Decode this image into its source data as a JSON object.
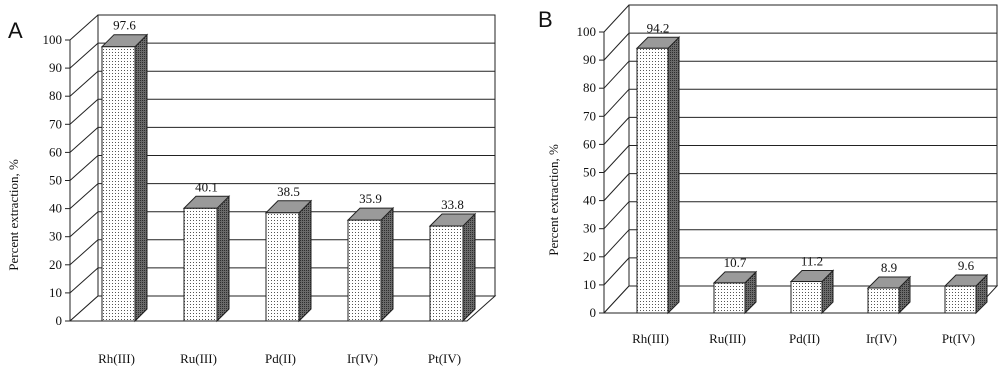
{
  "chart_data": [
    {
      "panel": "A",
      "type": "bar",
      "categories": [
        "Rh(III)",
        "Ru(III)",
        "Pd(II)",
        "Ir(IV)",
        "Pt(IV)"
      ],
      "values": [
        97.6,
        40.1,
        38.5,
        35.9,
        33.8
      ],
      "value_labels": [
        "97.6",
        "40.1",
        "38.5",
        "35.9",
        "33.8"
      ],
      "ylabel": "Percent extraction, %",
      "ylim": [
        0,
        100
      ],
      "yticks": [
        "0",
        "10",
        "20",
        "30",
        "40",
        "50",
        "60",
        "70",
        "80",
        "90",
        "100"
      ],
      "grid": true,
      "style": "3d",
      "colors": {
        "front": "#ffffff",
        "dots": "#555555",
        "top": "#9a9a9a",
        "side": "#555555",
        "line": "#222222"
      }
    },
    {
      "panel": "B",
      "type": "bar",
      "categories": [
        "Rh(III)",
        "Ru(III)",
        "Pd(II)",
        "Ir(IV)",
        "Pt(IV)"
      ],
      "values": [
        94.2,
        10.7,
        11.2,
        8.9,
        9.6
      ],
      "value_labels": [
        "94.2",
        "10.7",
        "11.2",
        "8.9",
        "9.6"
      ],
      "ylabel": "Percent extraction, %",
      "ylim": [
        0,
        100
      ],
      "yticks": [
        "0",
        "10",
        "20",
        "30",
        "40",
        "50",
        "60",
        "70",
        "80",
        "90",
        "100"
      ],
      "grid": true,
      "style": "3d",
      "colors": {
        "front": "#ffffff",
        "dots": "#555555",
        "top": "#9a9a9a",
        "side": "#555555",
        "line": "#222222"
      }
    }
  ]
}
